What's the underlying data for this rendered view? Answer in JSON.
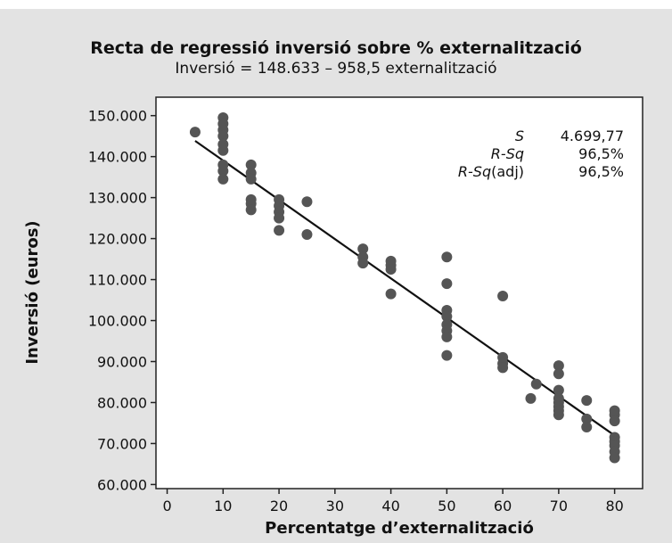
{
  "chart_data": {
    "type": "scatter",
    "title": "Recta de regressió inversió sobre % externalització",
    "subtitle": "Inversió = 148.633 – 958,5 externalització",
    "xlabel": "Percentatge d’externalització",
    "ylabel": "Inversió (euros)",
    "xlim": [
      -2,
      85
    ],
    "ylim": [
      59000,
      154500
    ],
    "x_ticks": [
      0,
      10,
      20,
      30,
      40,
      50,
      60,
      70,
      80
    ],
    "x_tick_labels": [
      "0",
      "10",
      "20",
      "30",
      "40",
      "50",
      "60",
      "70",
      "80"
    ],
    "y_ticks": [
      60000,
      70000,
      80000,
      90000,
      100000,
      110000,
      120000,
      130000,
      140000,
      150000
    ],
    "y_tick_labels": [
      "60.000",
      "70.000",
      "80.000",
      "90.000",
      "100.000",
      "110.000",
      "120.000",
      "130.000",
      "140.000",
      "150.000"
    ],
    "grid": false,
    "point_color": "#555555",
    "line_color": "#111111",
    "regression_line": {
      "intercept": 148633,
      "slope": -958.5,
      "x_range": [
        5,
        80
      ]
    },
    "stats": [
      {
        "name": "S",
        "suffix": "",
        "value": "4.699,77"
      },
      {
        "name": "R-Sq",
        "suffix": "",
        "value": "96,5%"
      },
      {
        "name": "R-Sq",
        "suffix": "(adj)",
        "value": "96,5%"
      }
    ],
    "points": [
      [
        5,
        146000
      ],
      [
        10,
        149500
      ],
      [
        10,
        148000
      ],
      [
        10,
        146500
      ],
      [
        10,
        145000
      ],
      [
        10,
        143000
      ],
      [
        10,
        141500
      ],
      [
        10,
        138000
      ],
      [
        10,
        136500
      ],
      [
        10,
        134500
      ],
      [
        15,
        138000
      ],
      [
        15,
        136000
      ],
      [
        15,
        134500
      ],
      [
        15,
        129500
      ],
      [
        15,
        128500
      ],
      [
        15,
        127000
      ],
      [
        20,
        129500
      ],
      [
        20,
        128000
      ],
      [
        20,
        126500
      ],
      [
        20,
        125000
      ],
      [
        20,
        122000
      ],
      [
        25,
        129000
      ],
      [
        25,
        121000
      ],
      [
        35,
        117500
      ],
      [
        35,
        115500
      ],
      [
        35,
        114000
      ],
      [
        40,
        114500
      ],
      [
        40,
        113500
      ],
      [
        40,
        112500
      ],
      [
        40,
        106500
      ],
      [
        50,
        115500
      ],
      [
        50,
        109000
      ],
      [
        50,
        102500
      ],
      [
        50,
        101000
      ],
      [
        50,
        99000
      ],
      [
        50,
        97500
      ],
      [
        50,
        96000
      ],
      [
        50,
        91500
      ],
      [
        60,
        106000
      ],
      [
        60,
        91000
      ],
      [
        60,
        89500
      ],
      [
        60,
        88500
      ],
      [
        65,
        81000
      ],
      [
        66,
        84500
      ],
      [
        70,
        89000
      ],
      [
        70,
        87000
      ],
      [
        70,
        83000
      ],
      [
        70,
        81000
      ],
      [
        70,
        80000
      ],
      [
        70,
        79000
      ],
      [
        70,
        78000
      ],
      [
        70,
        77000
      ],
      [
        75,
        80500
      ],
      [
        75,
        76000
      ],
      [
        75,
        74000
      ],
      [
        80,
        78000
      ],
      [
        80,
        77000
      ],
      [
        80,
        75500
      ],
      [
        80,
        71500
      ],
      [
        80,
        70500
      ],
      [
        80,
        69500
      ],
      [
        80,
        68000
      ],
      [
        80,
        66500
      ]
    ]
  }
}
